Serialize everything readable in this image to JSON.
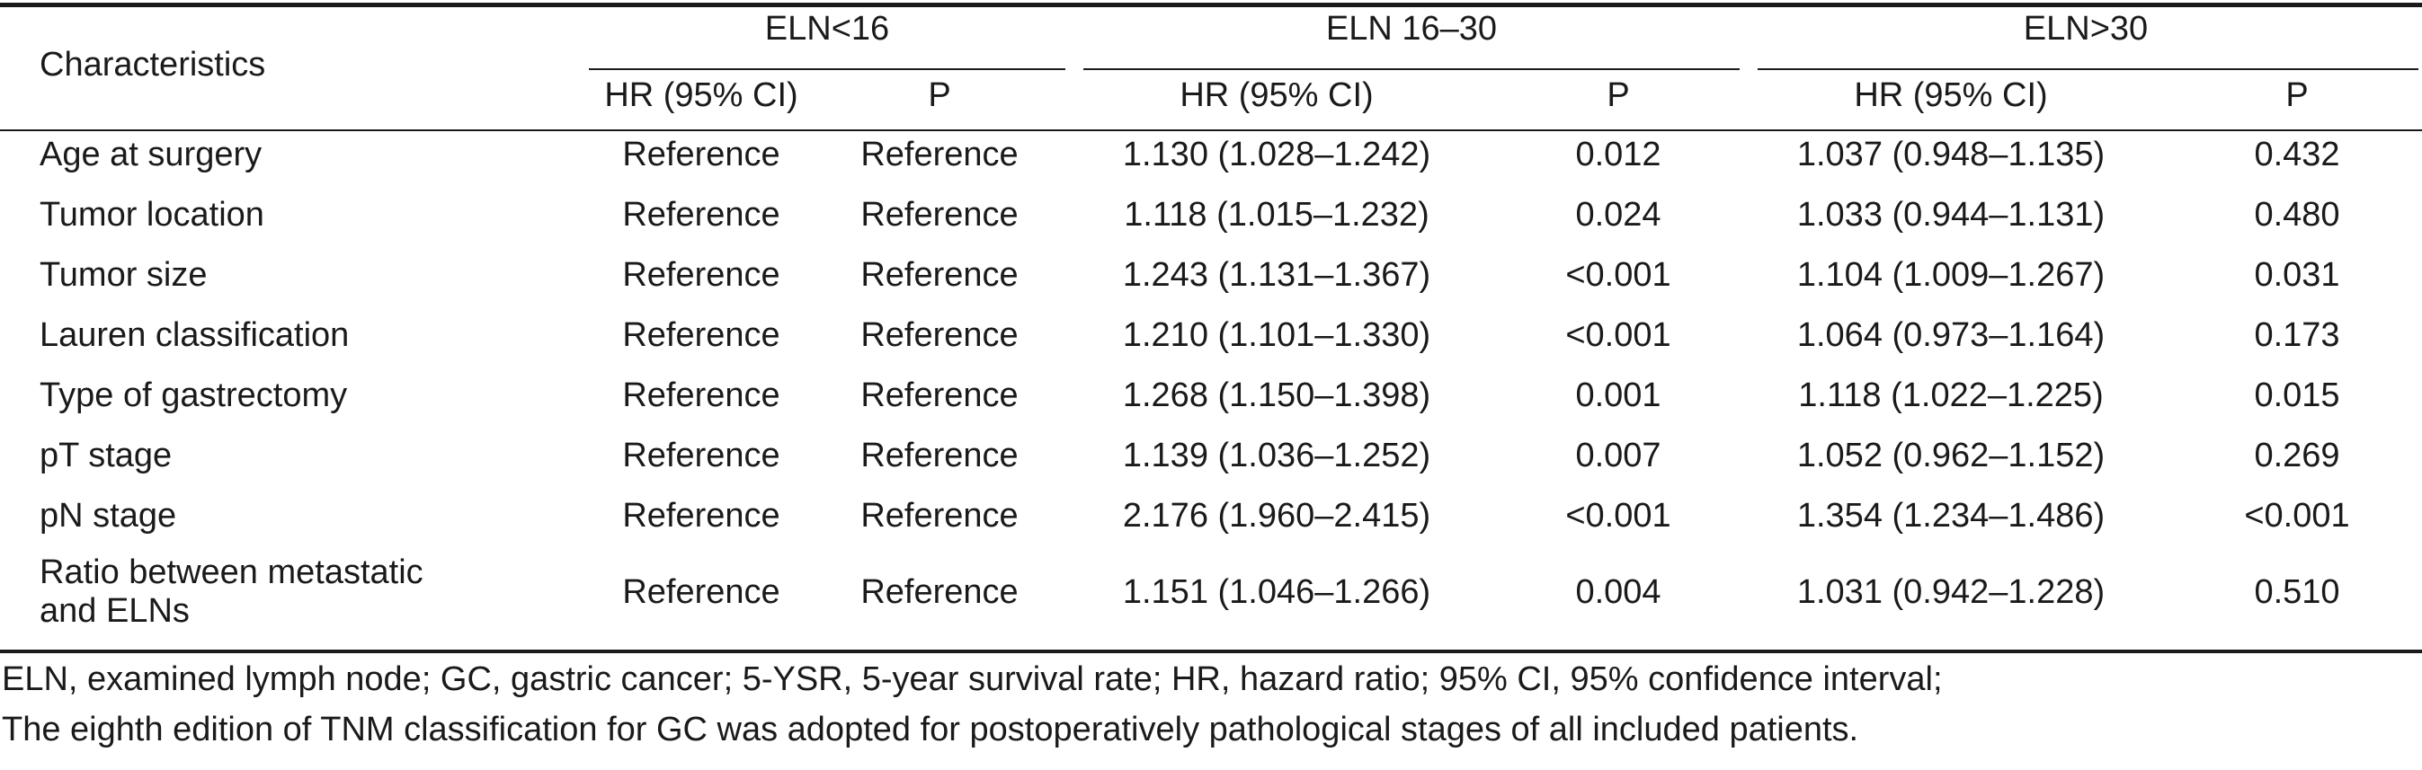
{
  "table": {
    "header": {
      "characteristics": "Characteristics",
      "groups": [
        {
          "label": "ELN<16",
          "hr": "HR (95% CI)",
          "p": "P"
        },
        {
          "label": "ELN 16–30",
          "hr": "HR (95% CI)",
          "p": "P"
        },
        {
          "label": "ELN>30",
          "hr": "HR (95% CI)",
          "p": "P"
        }
      ]
    },
    "rows": [
      {
        "label": [
          "Age at surgery"
        ],
        "g1_hr": "Reference",
        "g1_p": "Reference",
        "g2_hr": "1.130 (1.028–1.242)",
        "g2_p": "0.012",
        "g3_hr": "1.037 (0.948–1.135)",
        "g3_p": "0.432"
      },
      {
        "label": [
          "Tumor location"
        ],
        "g1_hr": "Reference",
        "g1_p": "Reference",
        "g2_hr": "1.118 (1.015–1.232)",
        "g2_p": "0.024",
        "g3_hr": "1.033 (0.944–1.131)",
        "g3_p": "0.480"
      },
      {
        "label": [
          "Tumor size"
        ],
        "g1_hr": "Reference",
        "g1_p": "Reference",
        "g2_hr": "1.243 (1.131–1.367)",
        "g2_p": "<0.001",
        "g3_hr": "1.104 (1.009–1.267)",
        "g3_p": "0.031"
      },
      {
        "label": [
          "Lauren classification"
        ],
        "g1_hr": "Reference",
        "g1_p": "Reference",
        "g2_hr": "1.210 (1.101–1.330)",
        "g2_p": "<0.001",
        "g3_hr": "1.064 (0.973–1.164)",
        "g3_p": "0.173"
      },
      {
        "label": [
          "Type of gastrectomy"
        ],
        "g1_hr": "Reference",
        "g1_p": "Reference",
        "g2_hr": "1.268 (1.150–1.398)",
        "g2_p": "0.001",
        "g3_hr": "1.118 (1.022–1.225)",
        "g3_p": "0.015"
      },
      {
        "label": [
          "pT stage"
        ],
        "g1_hr": "Reference",
        "g1_p": "Reference",
        "g2_hr": "1.139 (1.036–1.252)",
        "g2_p": "0.007",
        "g3_hr": "1.052 (0.962–1.152)",
        "g3_p": "0.269"
      },
      {
        "label": [
          "pN stage"
        ],
        "g1_hr": "Reference",
        "g1_p": "Reference",
        "g2_hr": "2.176 (1.960–2.415)",
        "g2_p": "<0.001",
        "g3_hr": "1.354 (1.234–1.486)",
        "g3_p": "<0.001"
      },
      {
        "label": [
          "Ratio between metastatic",
          "and ELNs"
        ],
        "g1_hr": "Reference",
        "g1_p": "Reference",
        "g2_hr": "1.151 (1.046–1.266)",
        "g2_p": "0.004",
        "g3_hr": "1.031 (0.942–1.228)",
        "g3_p": "0.510"
      }
    ]
  },
  "footnote": [
    "ELN, examined lymph node; GC, gastric cancer; 5-YSR, 5-year survival rate; HR, hazard ratio; 95% CI, 95% confidence interval;",
    "The eighth edition of TNM classification for GC was adopted for postoperatively pathological stages of all included patients."
  ]
}
